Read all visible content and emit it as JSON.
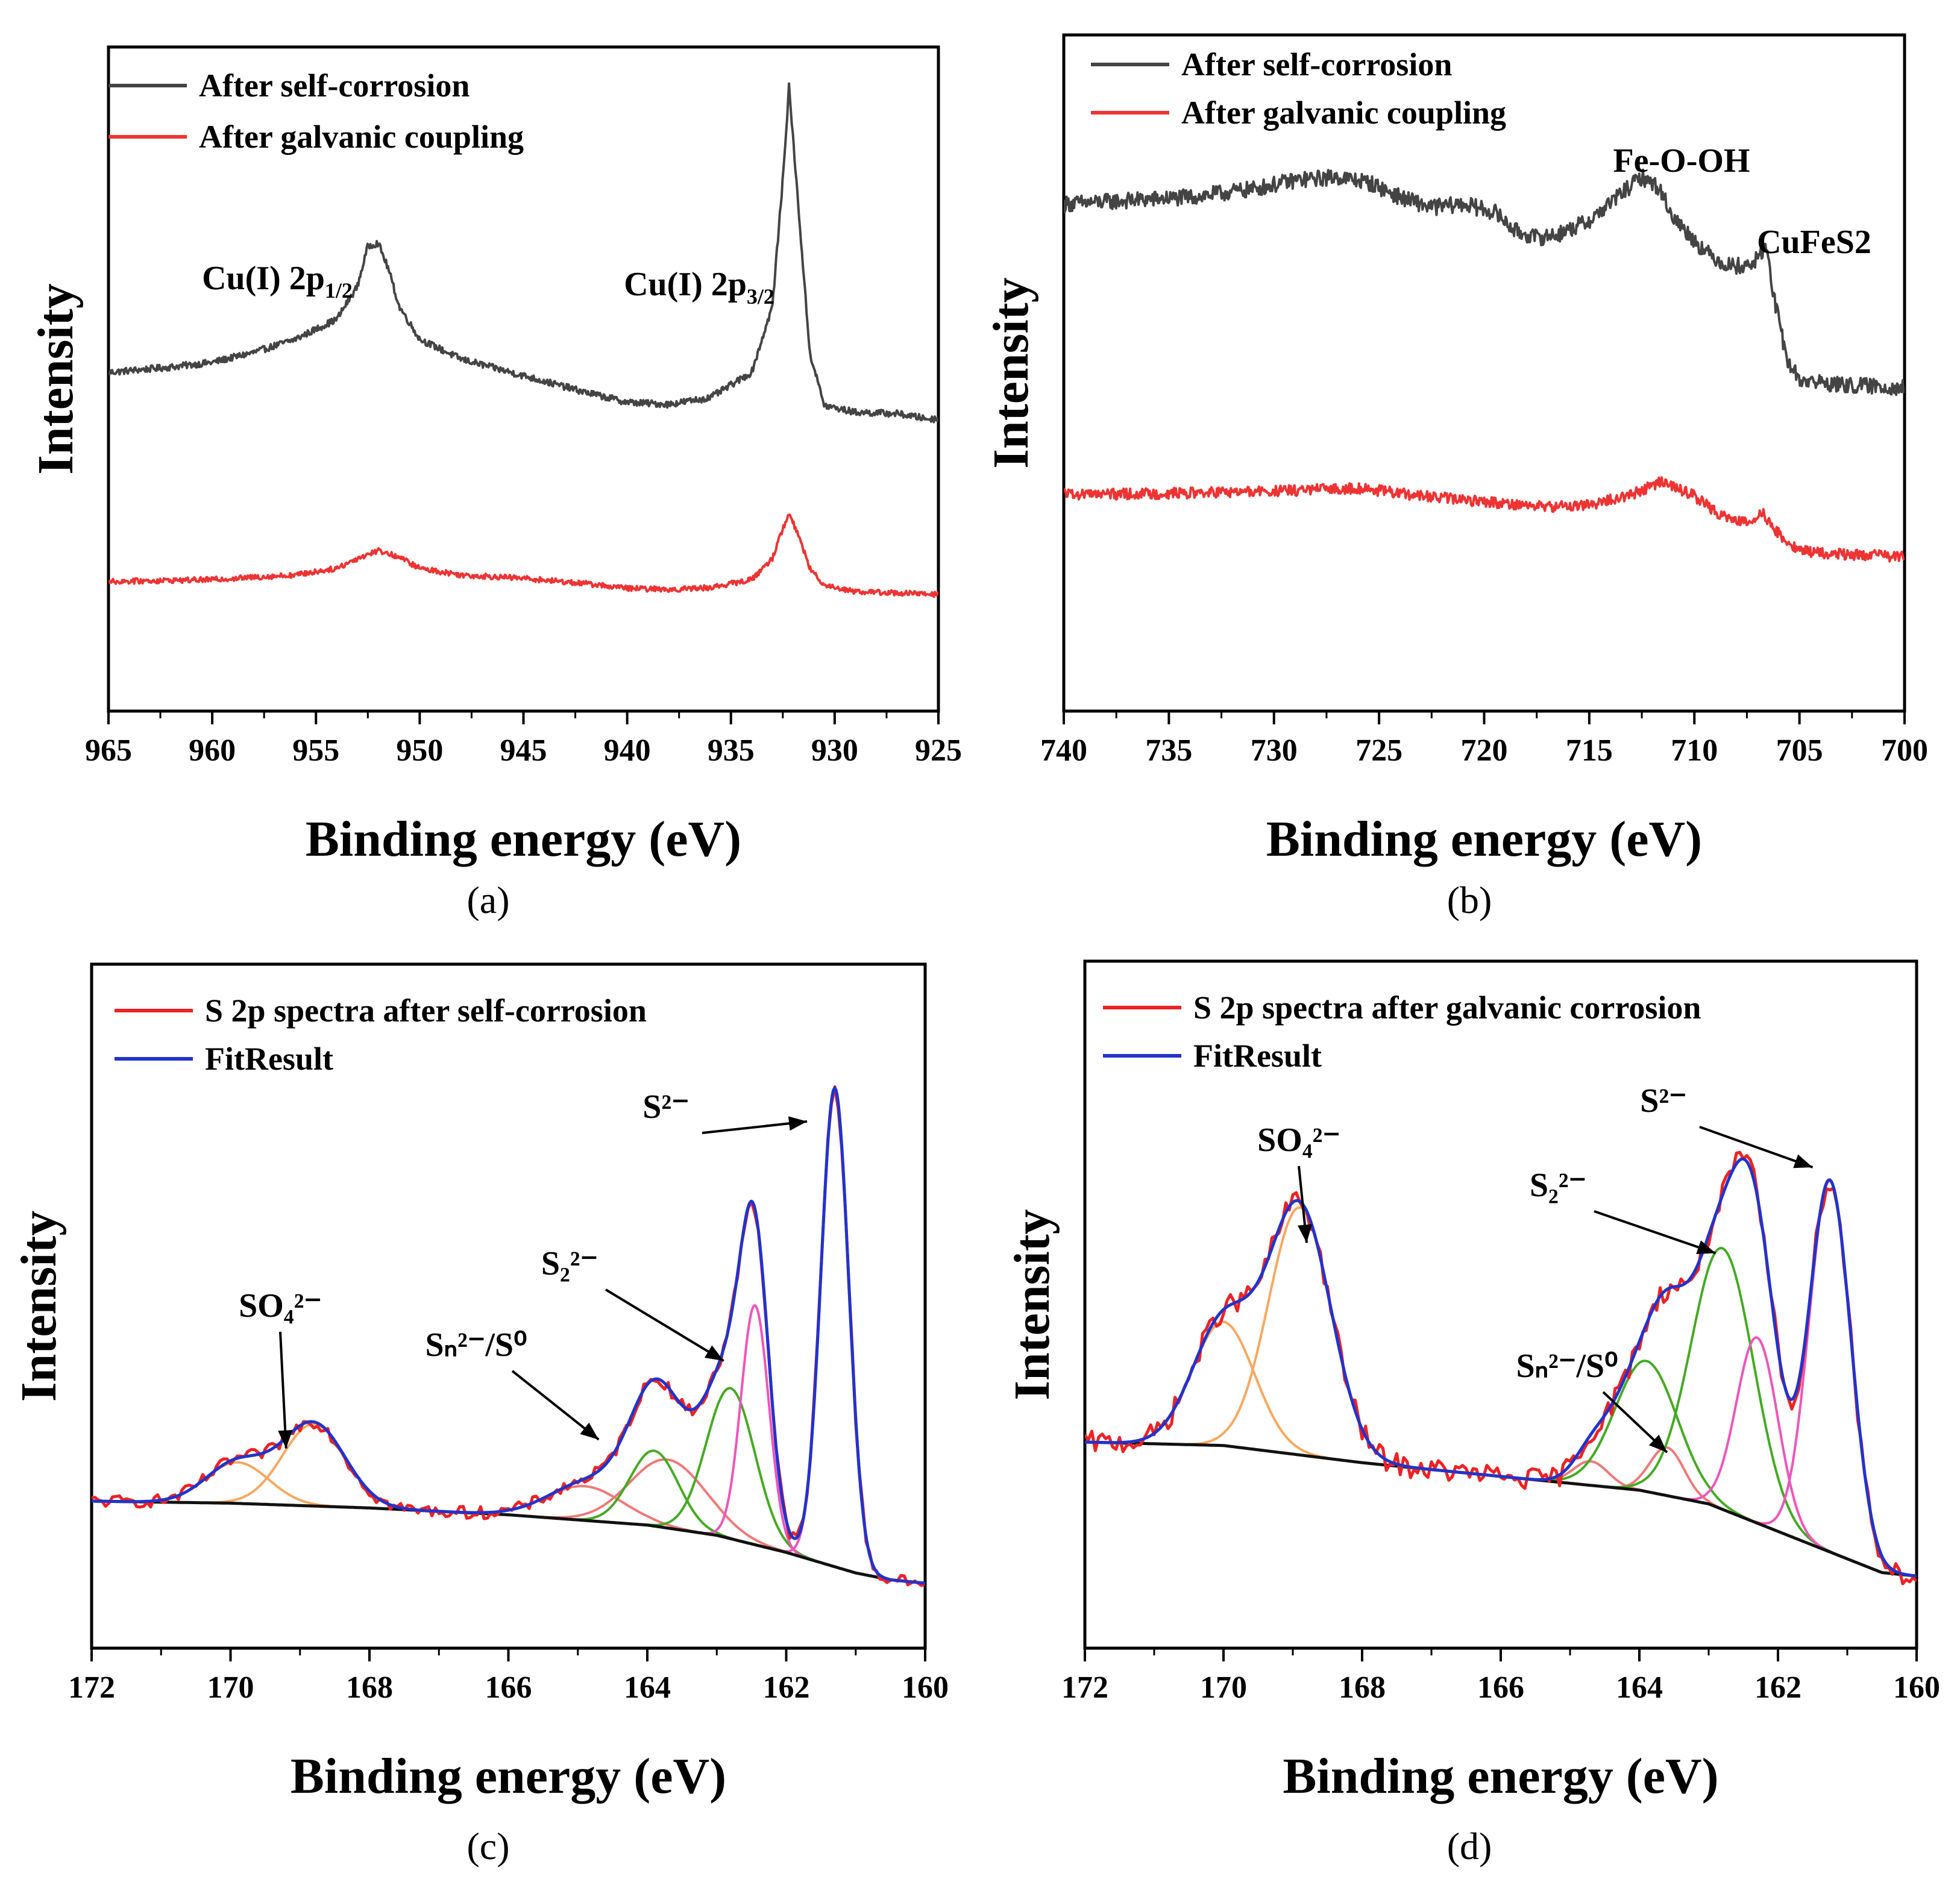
{
  "figure_type": "xps_panels",
  "chart_data": [
    {
      "panel": "(a)",
      "type": "line",
      "xlabel": "Binding energy (eV)",
      "ylabel": "Intensity",
      "xlim": [
        965,
        925
      ],
      "ylim": [
        0,
        1
      ],
      "x_ticks": [
        965,
        960,
        955,
        950,
        945,
        940,
        935,
        930,
        925
      ],
      "legend": [
        {
          "label": "After self-corrosion",
          "color": "#444444"
        },
        {
          "label": "After galvanic coupling",
          "color": "#ee3333"
        }
      ],
      "annotations": [
        {
          "base": "Cu(I) 2p",
          "sub": "1/2",
          "x": 952
        },
        {
          "base": "Cu(I) 2p",
          "sub": "3/2",
          "x": 932.2
        }
      ],
      "series": [
        {
          "name": "After self-corrosion",
          "color": "#444444",
          "noise": 0.005,
          "x": [
            965,
            962,
            960,
            958,
            956,
            954,
            953,
            952.5,
            952,
            951.5,
            951,
            950,
            948,
            945,
            942,
            940,
            938,
            936,
            934,
            933,
            932.5,
            932.2,
            931.8,
            931.2,
            930.5,
            929,
            927,
            925.5
          ],
          "y": [
            0.51,
            0.518,
            0.525,
            0.54,
            0.56,
            0.59,
            0.64,
            0.7,
            0.705,
            0.665,
            0.61,
            0.56,
            0.53,
            0.505,
            0.48,
            0.465,
            0.462,
            0.472,
            0.51,
            0.61,
            0.8,
            0.94,
            0.78,
            0.54,
            0.46,
            0.45,
            0.448,
            0.44
          ]
        },
        {
          "name": "After galvanic coupling",
          "color": "#ee3333",
          "noise": 0.004,
          "x": [
            965,
            960,
            956,
            954,
            953,
            952,
            951,
            950,
            948,
            945,
            942,
            940,
            938,
            936,
            934,
            933,
            932.5,
            932.2,
            931.8,
            931.2,
            930.5,
            929,
            927,
            925.5
          ],
          "y": [
            0.195,
            0.198,
            0.205,
            0.215,
            0.23,
            0.242,
            0.232,
            0.215,
            0.205,
            0.2,
            0.192,
            0.185,
            0.183,
            0.186,
            0.198,
            0.23,
            0.275,
            0.296,
            0.27,
            0.215,
            0.19,
            0.18,
            0.178,
            0.176
          ]
        }
      ]
    },
    {
      "panel": "(b)",
      "type": "line",
      "xlabel": "Binding energy (eV)",
      "ylabel": "Intensity",
      "xlim": [
        740,
        700
      ],
      "ylim": [
        0,
        1
      ],
      "x_ticks": [
        740,
        735,
        730,
        725,
        720,
        715,
        710,
        705,
        700
      ],
      "legend": [
        {
          "label": "After self-corrosion",
          "color": "#444444"
        },
        {
          "label": "After galvanic coupling",
          "color": "#ee3333"
        }
      ],
      "annotations": [
        {
          "base": "Fe-O-OH",
          "x": 712
        },
        {
          "base": "CuFeS2",
          "x": 706.6
        }
      ],
      "series": [
        {
          "name": "After self-corrosion",
          "color": "#444444",
          "noise": 0.012,
          "x": [
            740,
            737,
            734,
            731,
            729,
            727,
            725.5,
            724,
            722.5,
            721,
            719.5,
            718.5,
            717.5,
            716.5,
            715,
            713.5,
            712.5,
            711.7,
            711,
            709.5,
            708.5,
            707.5,
            707,
            706.6,
            706.2,
            705.6,
            705,
            703,
            701,
            700
          ],
          "y": [
            0.75,
            0.755,
            0.76,
            0.772,
            0.785,
            0.79,
            0.782,
            0.76,
            0.745,
            0.75,
            0.738,
            0.71,
            0.7,
            0.705,
            0.725,
            0.765,
            0.79,
            0.775,
            0.73,
            0.68,
            0.66,
            0.658,
            0.668,
            0.69,
            0.61,
            0.52,
            0.49,
            0.482,
            0.48,
            0.478
          ]
        },
        {
          "name": "After galvanic coupling",
          "color": "#ee3333",
          "noise": 0.008,
          "x": [
            740,
            735,
            730,
            726,
            723,
            720,
            717,
            715,
            713,
            711.5,
            710,
            709,
            708,
            707.3,
            706.8,
            706.2,
            705.5,
            704.5,
            703,
            701,
            700
          ],
          "y": [
            0.32,
            0.322,
            0.325,
            0.33,
            0.318,
            0.31,
            0.302,
            0.305,
            0.32,
            0.34,
            0.318,
            0.295,
            0.28,
            0.282,
            0.295,
            0.27,
            0.245,
            0.235,
            0.232,
            0.23,
            0.228
          ]
        }
      ]
    },
    {
      "panel": "(c)",
      "type": "line",
      "xlabel": "Binding energy (eV)",
      "ylabel": "Intensity",
      "xlim": [
        172,
        160
      ],
      "ylim": [
        0,
        1
      ],
      "x_ticks": [
        172,
        170,
        168,
        166,
        164,
        162,
        160
      ],
      "legend": [
        {
          "label": "S 2p spectra after self-corrosion",
          "color": "#ee2222"
        },
        {
          "label": "FitResult",
          "color": "#2233cc"
        }
      ],
      "annotations": [
        {
          "label": "SO₄²⁻",
          "arrow_to": [
            169.2,
            0.292
          ]
        },
        {
          "label": "Sₙ²⁻/S⁰",
          "arrow_to": [
            164.7,
            0.305
          ]
        },
        {
          "label": "S₂²⁻",
          "arrow_to": [
            162.9,
            0.42
          ]
        },
        {
          "label": "S²⁻",
          "arrow_to": [
            161.7,
            0.77
          ]
        }
      ],
      "baseline": {
        "color": "#111111",
        "x": [
          172,
          170,
          168,
          166,
          164,
          163,
          162,
          161,
          160.5,
          160
        ],
        "y": [
          0.215,
          0.212,
          0.205,
          0.195,
          0.18,
          0.165,
          0.14,
          0.11,
          0.1,
          0.095
        ]
      },
      "components": [
        {
          "name": "SO4 2p3/2",
          "color": "#f7a860",
          "center": 168.8,
          "width": 0.45,
          "height": 0.12
        },
        {
          "name": "SO4 2p1/2",
          "color": "#f7a860",
          "center": 169.9,
          "width": 0.45,
          "height": 0.06
        },
        {
          "name": "Sn2-/S0 2p3/2",
          "color": "#f07878",
          "center": 163.7,
          "width": 0.55,
          "height": 0.1
        },
        {
          "name": "Sn2-/S0 2p1/2",
          "color": "#f07878",
          "center": 164.9,
          "width": 0.55,
          "height": 0.05
        },
        {
          "name": "S2 2- 2p3/2",
          "color": "#44aa22",
          "center": 162.8,
          "width": 0.35,
          "height": 0.22
        },
        {
          "name": "S2 2- 2p1/2",
          "color": "#44aa22",
          "center": 163.9,
          "width": 0.35,
          "height": 0.11
        },
        {
          "name": "S2- 2p1/2",
          "color": "#ee55bb",
          "center": 162.45,
          "width": 0.2,
          "height": 0.35
        },
        {
          "name": "S2- 2p3/2",
          "color": "#ee55bb",
          "center": 161.3,
          "width": 0.2,
          "height": 0.7
        }
      ],
      "series": [
        {
          "name": "S 2p spectra after self-corrosion",
          "color": "#ee2222",
          "role": "data",
          "noise": 0.009
        },
        {
          "name": "FitResult",
          "color": "#2233cc",
          "role": "fit",
          "noise": 0
        }
      ]
    },
    {
      "panel": "(d)",
      "type": "line",
      "xlabel": "Binding energy (eV)",
      "ylabel": "Intensity",
      "xlim": [
        172,
        160
      ],
      "ylim": [
        0,
        1
      ],
      "x_ticks": [
        172,
        170,
        168,
        166,
        164,
        162,
        160
      ],
      "legend": [
        {
          "label": "S 2p spectra after galvanic corrosion",
          "color": "#ee2222"
        },
        {
          "label": "FitResult",
          "color": "#2233cc"
        }
      ],
      "annotations": [
        {
          "label": "SO₄²⁻",
          "arrow_to": [
            168.8,
            0.59
          ]
        },
        {
          "label": "S₂²⁻",
          "arrow_to": [
            162.9,
            0.575
          ]
        },
        {
          "label": "Sₙ²⁻/S⁰",
          "arrow_to": [
            163.6,
            0.285
          ]
        },
        {
          "label": "S²⁻",
          "arrow_to": [
            161.5,
            0.7
          ]
        }
      ],
      "baseline": {
        "color": "#111111",
        "x": [
          172,
          170,
          168,
          166,
          164,
          163,
          162,
          161,
          160.5,
          160
        ],
        "y": [
          0.3,
          0.295,
          0.27,
          0.25,
          0.23,
          0.21,
          0.17,
          0.13,
          0.11,
          0.105
        ]
      },
      "components": [
        {
          "name": "SO4 2p3/2",
          "color": "#f7a860",
          "center": 168.9,
          "width": 0.45,
          "height": 0.36
        },
        {
          "name": "SO4 2p1/2",
          "color": "#f7a860",
          "center": 170.0,
          "width": 0.45,
          "height": 0.18
        },
        {
          "name": "Sn2-/S0 2p3/2",
          "color": "#f07878",
          "center": 163.6,
          "width": 0.25,
          "height": 0.07
        },
        {
          "name": "Sn2-/S0 2p1/2",
          "color": "#f07878",
          "center": 164.7,
          "width": 0.25,
          "height": 0.035
        },
        {
          "name": "S2 2- 2p3/2",
          "color": "#44aa22",
          "center": 162.8,
          "width": 0.45,
          "height": 0.38
        },
        {
          "name": "S2 2- 2p1/2",
          "color": "#44aa22",
          "center": 163.9,
          "width": 0.45,
          "height": 0.19
        },
        {
          "name": "S2- 2p1/2",
          "color": "#ee55bb",
          "center": 162.3,
          "width": 0.3,
          "height": 0.27
        },
        {
          "name": "S2- 2p3/2",
          "color": "#ee55bb",
          "center": 161.25,
          "width": 0.3,
          "height": 0.54
        }
      ],
      "series": [
        {
          "name": "S 2p spectra after galvanic corrosion",
          "color": "#ee2222",
          "role": "data",
          "noise": 0.016
        },
        {
          "name": "FitResult",
          "color": "#2233cc",
          "role": "fit",
          "noise": 0
        }
      ]
    }
  ]
}
